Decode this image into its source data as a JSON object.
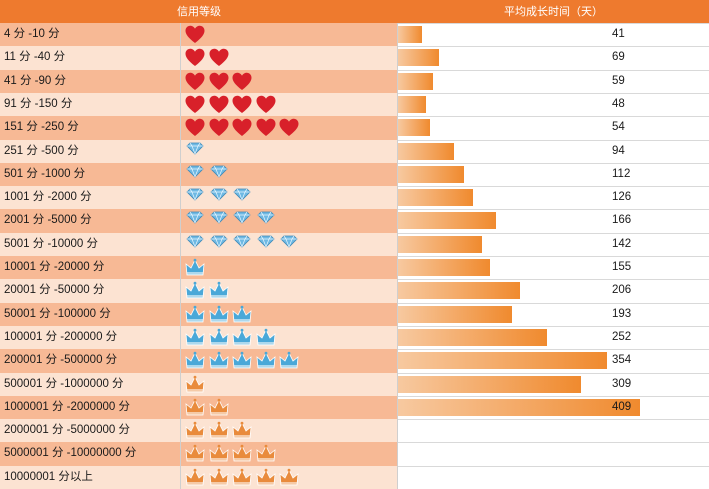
{
  "header": {
    "grade_label": "信用等级",
    "days_label": "平均成长时间（天）"
  },
  "colors": {
    "header": "#ee7a2e",
    "row_odd": "#f7b995",
    "row_even": "#fce3d2",
    "heart": "#d8202a",
    "diamond": "#6fb9e3",
    "crown_blue": "#4aa8d8",
    "crown_orange": "#e98b3c",
    "bar_start": "#f7c9a0",
    "bar_end": "#f08a2e"
  },
  "chart_data": {
    "type": "bar",
    "title": "",
    "xlabel": "平均成长时间（天）",
    "ylabel": "信用等级",
    "xlim": [
      0,
      409
    ],
    "categories": [
      "4 分 -10 分",
      "11 分 -40 分",
      "41 分 -90 分",
      "91 分 -150 分",
      "151 分 -250 分",
      "251 分 -500 分",
      "501 分 -1000 分",
      "1001 分 -2000 分",
      "2001 分 -5000 分",
      "5001 分 -10000 分",
      "10001 分 -20000 分",
      "20001 分 -50000 分",
      "50001 分 -100000 分",
      "100001 分 -200000 分",
      "200001 分 -500000 分",
      "500001 分 -1000000 分",
      "1000001 分 -2000000 分",
      "2000001 分 -5000000 分",
      "5000001 分 -10000000 分",
      "10000001 分以上"
    ],
    "values": [
      41,
      69,
      59,
      48,
      54,
      94,
      112,
      126,
      166,
      142,
      155,
      206,
      193,
      252,
      354,
      309,
      409,
      null,
      null,
      null
    ],
    "icons": [
      {
        "type": "heart-icon",
        "count": 1
      },
      {
        "type": "heart-icon",
        "count": 2
      },
      {
        "type": "heart-icon",
        "count": 3
      },
      {
        "type": "heart-icon",
        "count": 4
      },
      {
        "type": "heart-icon",
        "count": 5
      },
      {
        "type": "diamond-icon",
        "count": 1
      },
      {
        "type": "diamond-icon",
        "count": 2
      },
      {
        "type": "diamond-icon",
        "count": 3
      },
      {
        "type": "diamond-icon",
        "count": 4
      },
      {
        "type": "diamond-icon",
        "count": 5
      },
      {
        "type": "blue-crown-icon",
        "count": 1
      },
      {
        "type": "blue-crown-icon",
        "count": 2
      },
      {
        "type": "blue-crown-icon",
        "count": 3
      },
      {
        "type": "blue-crown-icon",
        "count": 4
      },
      {
        "type": "blue-crown-icon",
        "count": 5
      },
      {
        "type": "orange-crown-icon",
        "count": 1
      },
      {
        "type": "orange-crown-icon",
        "count": 2
      },
      {
        "type": "orange-crown-icon",
        "count": 3
      },
      {
        "type": "orange-crown-icon",
        "count": 4
      },
      {
        "type": "orange-crown-icon",
        "count": 5
      }
    ]
  }
}
